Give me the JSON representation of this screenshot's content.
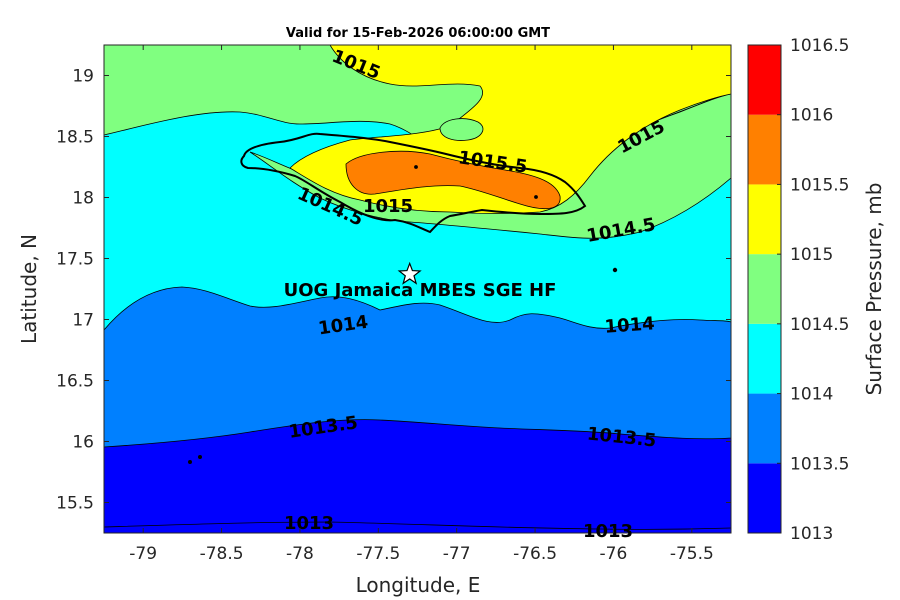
{
  "title": "Valid for 15-Feb-2026 06:00:00 GMT",
  "xlabel": "Longitude, E",
  "ylabel": "Latitude, N",
  "x_ticks": [
    "-79",
    "-78.5",
    "-78",
    "-77.5",
    "-77",
    "-76.5",
    "-76",
    "-75.5"
  ],
  "y_ticks": [
    "15.5",
    "16",
    "16.5",
    "17",
    "17.5",
    "18",
    "18.5",
    "19"
  ],
  "colorbar": {
    "label": "Surface Pressure, mb",
    "ticks": [
      "1013",
      "1013.5",
      "1014",
      "1014.5",
      "1015",
      "1015.5",
      "1016",
      "1016.5"
    ],
    "colors": [
      "#0000ff",
      "#0080ff",
      "#00ffff",
      "#80ff80",
      "#ffff00",
      "#ff8000",
      "#ff0000",
      "#800000"
    ]
  },
  "site": {
    "label": "UOG Jamaica MBES SGE HF",
    "lon": -77.3,
    "lat": 17.37
  },
  "contour_labels": {
    "l1015_top": "1015",
    "l1015_right": "1015",
    "l1015_5": "1015.5",
    "l1015_mid": "1015",
    "l1014_5_left": "1014.5",
    "l1014_5_right": "1014.5",
    "l1014_left": "1014",
    "l1014_right": "1014",
    "l1013_5_left": "1013.5",
    "l1013_5_right": "1013.5",
    "l1013_left": "1013",
    "l1013_right": "1013"
  },
  "map_data": {
    "type": "filled-contour",
    "variable": "Surface Pressure",
    "units": "mb",
    "xlim": [
      -79.25,
      -75.25
    ],
    "ylim": [
      15.25,
      19.25
    ],
    "levels": [
      1013,
      1013.5,
      1014,
      1014.5,
      1015,
      1015.5,
      1016,
      1016.5
    ]
  }
}
